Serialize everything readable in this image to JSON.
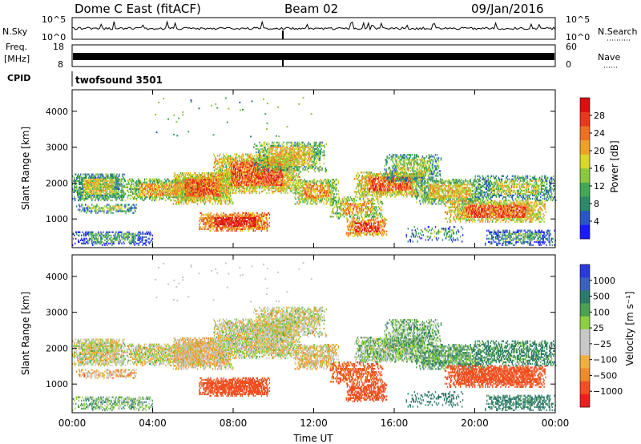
{
  "header": {
    "station": "Dome C East (fitACF)",
    "beam": "Beam 02",
    "date": "09/Jan/2016"
  },
  "strips": {
    "nsky_label": "N.Sky",
    "nsky_ticks": [
      "10^5",
      "10^0"
    ],
    "nsearch_label": "N.Search",
    "freq_label_top": "Freq.",
    "freq_label_unit": "[MHz]",
    "freq_ticks": [
      "18",
      "8"
    ],
    "nave_label": "Nave",
    "nave_ticks": [
      "60",
      "0"
    ],
    "cpid_label": "CPID",
    "cpid_value": "twofsound 3501"
  },
  "colors": {
    "power": [
      "#1a1aff",
      "#2a55c8",
      "#2a8a6a",
      "#3faa55",
      "#8cc83c",
      "#d8d828",
      "#f0a028",
      "#f07020",
      "#e83a1a",
      "#d81010"
    ],
    "velocity": [
      "#e82020",
      "#f05020",
      "#f08c28",
      "#f0b040",
      "#c8c8c8",
      "#c8c8c8",
      "#8cd040",
      "#4ca050",
      "#2c7a6a",
      "#3a60c0",
      "#2a3ad8"
    ]
  },
  "chart_data": [
    {
      "type": "heatmap",
      "name": "power-panel",
      "ylabel": "Slant Range [km]",
      "xlim": [
        0,
        24
      ],
      "ylim": [
        200,
        4600
      ],
      "y_ticks": [
        "1000",
        "2000",
        "3000",
        "4000"
      ],
      "y_tick_values": [
        1000,
        2000,
        3000,
        4000
      ],
      "colorbar": {
        "label": "Power [dB]",
        "ticks": [
          "4",
          "8",
          "12",
          "16",
          "20",
          "24",
          "28"
        ],
        "range": [
          0,
          32
        ]
      }
    },
    {
      "type": "heatmap",
      "name": "velocity-panel",
      "ylabel": "Slant Range [km]",
      "xlabel": "Time UT",
      "xlim": [
        0,
        24
      ],
      "ylim": [
        200,
        4600
      ],
      "x_ticks": [
        "00:00",
        "04:00",
        "08:00",
        "12:00",
        "16:00",
        "20:00",
        "00:00"
      ],
      "x_tick_values": [
        0,
        4,
        8,
        12,
        16,
        20,
        24
      ],
      "y_ticks": [
        "1000",
        "2000",
        "3000",
        "4000"
      ],
      "y_tick_values": [
        1000,
        2000,
        3000,
        4000
      ],
      "colorbar": {
        "label": "Velocity [m s⁻¹]",
        "ticks": [
          "1000",
          "500",
          "100",
          "25",
          "−25",
          "−100",
          "−500",
          "−1000"
        ]
      }
    }
  ]
}
